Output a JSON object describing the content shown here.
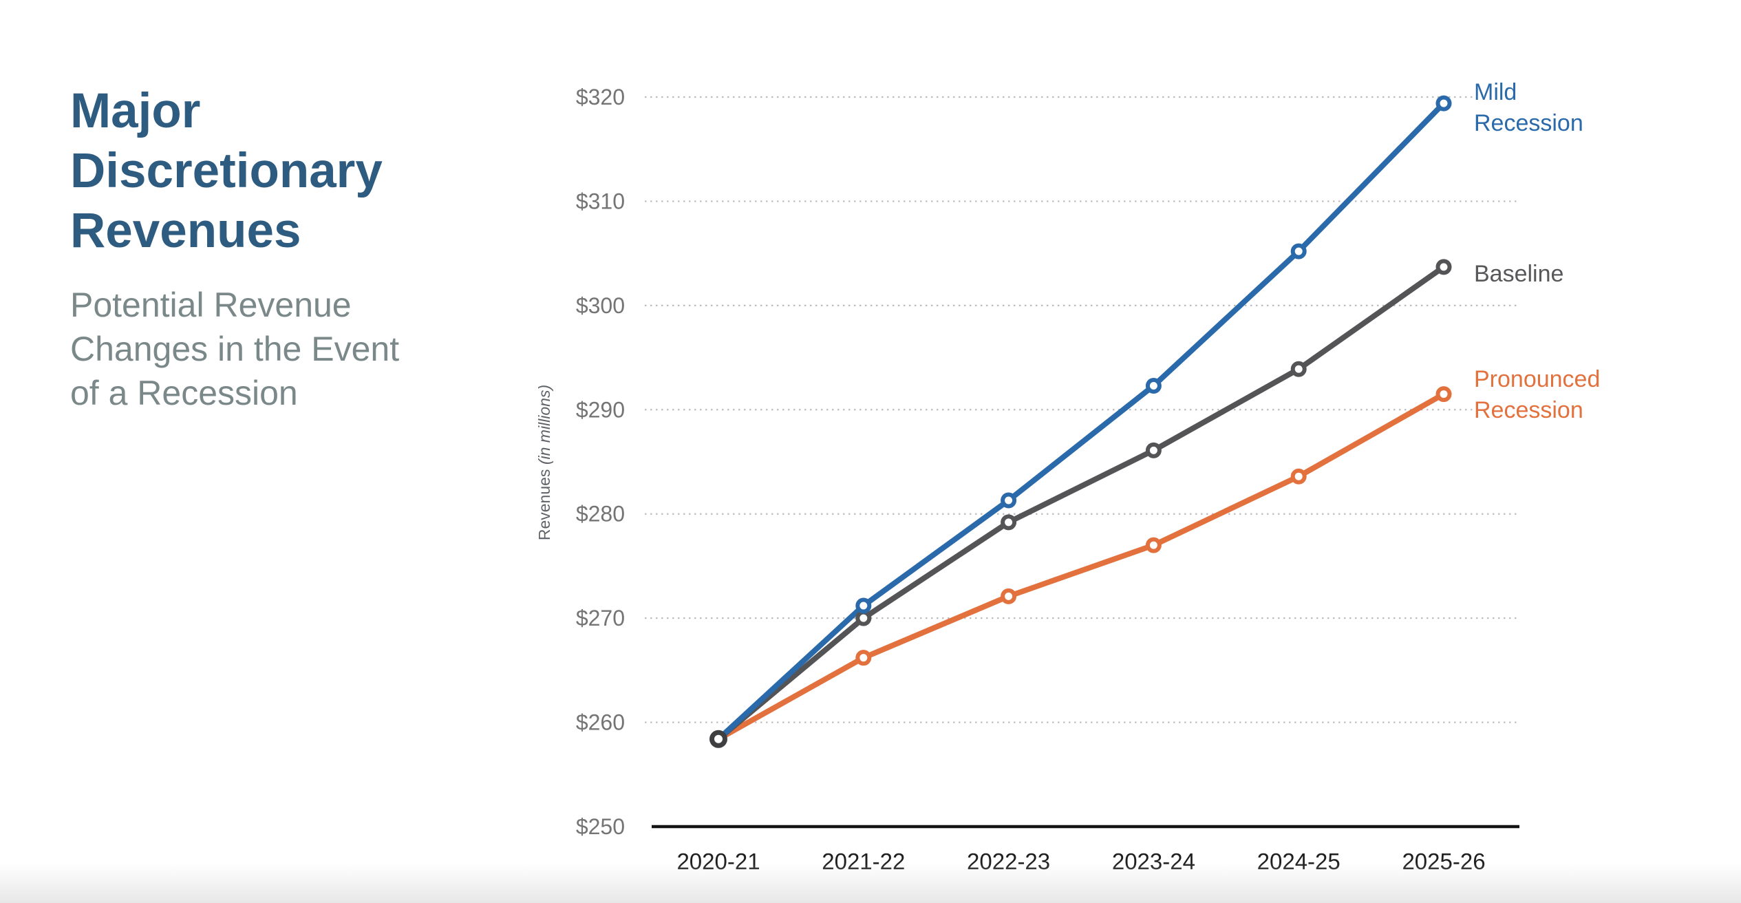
{
  "header": {
    "title_lines": [
      "Major",
      "Discretionary",
      "Revenues"
    ],
    "subtitle_lines": [
      "Potential Revenue",
      "Changes in the Event",
      "of a Recession"
    ],
    "title_color": "#2e5b80",
    "subtitle_color": "#7b8889"
  },
  "chart_data": {
    "type": "line",
    "title": "Major Discretionary Revenues",
    "subtitle": "Potential Revenue Changes in the Event of a Recession",
    "ylabel": "Revenues (in millions)",
    "ylabel_regular_part": "Revenues ",
    "ylabel_italic_part": "(in millions)",
    "xlabel": "",
    "categories": [
      "2020-21",
      "2021-22",
      "2022-23",
      "2023-24",
      "2024-25",
      "2025-26"
    ],
    "series": [
      {
        "name": "Mild Recession",
        "legend_lines": [
          "Mild",
          "Recession"
        ],
        "color": "#2a6aaa",
        "values": [
          258.4,
          271.2,
          281.3,
          292.3,
          305.2,
          319.4
        ]
      },
      {
        "name": "Baseline",
        "legend_lines": [
          "Baseline"
        ],
        "color": "#545456",
        "values": [
          258.4,
          270.0,
          279.2,
          286.1,
          293.9,
          303.7
        ]
      },
      {
        "name": "Pronounced Recession",
        "legend_lines": [
          "Pronounced",
          "Recession"
        ],
        "color": "#e2713e",
        "values": [
          258.4,
          266.2,
          272.1,
          277.0,
          283.6,
          291.5
        ]
      }
    ],
    "ylim": [
      250,
      320
    ],
    "y_ticks": [
      250,
      260,
      270,
      280,
      290,
      300,
      310,
      320
    ],
    "y_tick_labels": [
      "$250",
      "$260",
      "$270",
      "$280",
      "$290",
      "$300",
      "$310",
      "$320"
    ],
    "grid": "horizontal dotted gridlines at each $10 step, none at $250 (solid axis line there)",
    "legend_position": "right of line endpoints",
    "colors": {
      "gridline": "#bcbcbc",
      "axis_line": "#141414",
      "y_tick_label": "#747474",
      "x_tick_label": "#1f1f1f",
      "axis_title": "#5f6368",
      "origin_marker": "#3f3f41"
    }
  }
}
